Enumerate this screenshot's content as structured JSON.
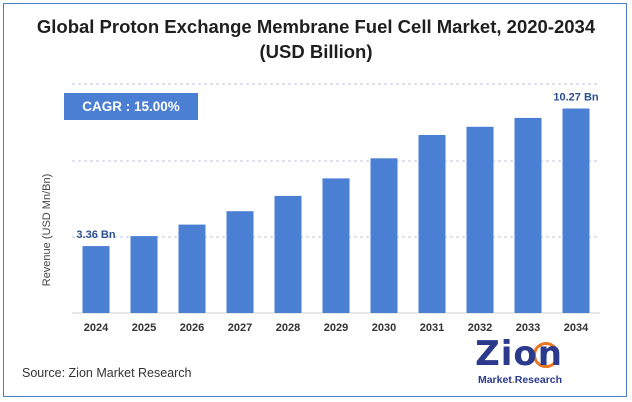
{
  "title_line1": "Global Proton Exchange Membrane Fuel Cell Market, 2020-2034",
  "title_line2": "(USD Billion)",
  "cagr_label": "CAGR :  15.00%",
  "source": "Source: Zion Market Research",
  "logo": {
    "word": "Zion",
    "sub_a": "Market",
    "sub_dot": ".",
    "sub_b": "Research"
  },
  "colors": {
    "bar": "#4a7fd4",
    "accent": "#4a7fd4",
    "frame": "#4e7bc4"
  },
  "chart_data": {
    "type": "bar",
    "title": "Global Proton Exchange Membrane Fuel Cell Market, 2020-2034 (USD Billion)",
    "xlabel": "",
    "ylabel": "Revenue (USD Mn/Bn)",
    "categories": [
      "2024",
      "2025",
      "2026",
      "2027",
      "2028",
      "2029",
      "2030",
      "2031",
      "2032",
      "2033",
      "2034"
    ],
    "values": [
      3.36,
      3.86,
      4.44,
      5.11,
      5.88,
      6.76,
      7.77,
      8.94,
      9.35,
      9.8,
      10.27
    ],
    "data_labels": [
      {
        "index": 0,
        "text": "3.36 Bn"
      },
      {
        "index": 10,
        "text": "10.27 Bn"
      }
    ],
    "ylim": [
      0,
      11.5
    ],
    "grid": true,
    "legend": "none"
  }
}
